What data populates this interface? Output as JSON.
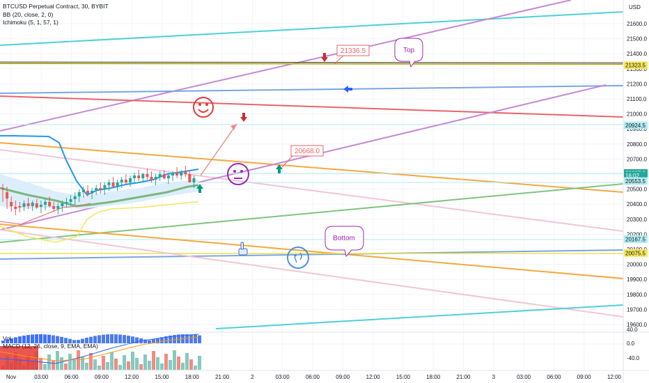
{
  "header": {
    "title": "BTCUSD Perpetual Contract, 30, BYBIT",
    "indicators": [
      "BB (20, close, 2, 0)",
      "Ichimoku (5, 1, 57, 1)"
    ]
  },
  "lower_pane": {
    "labels": [
      "Vol",
      "MACD (12, 26, close, 9, EMA, EMA)"
    ],
    "scale": [
      "40.0",
      "0.0",
      "-40.0"
    ]
  },
  "price_axis": {
    "currency": "USD",
    "ticks": [
      "21600.0",
      "21500.0",
      "21400.0",
      "21300.0",
      "21200.0",
      "21100.0",
      "21000.0",
      "20900.0",
      "20800.0",
      "20700.0",
      "20600.0",
      "20500.0",
      "20400.0",
      "20300.0",
      "20200.0",
      "20100.0",
      "20000.0",
      "19900.0",
      "19800.0",
      "19700.0",
      "19600.0"
    ],
    "tags": [
      {
        "text": "21323.5",
        "color": "#f5e65a",
        "price": 21323.5
      },
      {
        "text": "20924.5",
        "color": "#b2ebf2",
        "price": 20924.5
      },
      {
        "text": "20607.0",
        "color": "#26a69a",
        "price": 20607
      },
      {
        "text": "16:02",
        "color": "#26a69a",
        "price": 20590
      },
      {
        "text": "20553.5",
        "color": "#b2ebf2",
        "price": 20553.5
      },
      {
        "text": "20167.5",
        "color": "#b2ebf2",
        "price": 20167.5
      },
      {
        "text": "20075.5",
        "color": "#f5e65a",
        "price": 20075.5
      }
    ]
  },
  "time_axis": {
    "labels": [
      "Nov",
      "03:00",
      "06:00",
      "09:00",
      "12:00",
      "15:00",
      "18:00",
      "21:00",
      "2",
      "03:00",
      "06:00",
      "09:00",
      "12:00",
      "15:00",
      "18:00",
      "21:00",
      "3",
      "03:00",
      "06:00",
      "09:00",
      "12:00"
    ]
  },
  "annotations": {
    "price_callout_1": "21336.5",
    "price_callout_2": "20668.0",
    "top_bubble": "Top",
    "bottom_bubble": "Bottom"
  },
  "chart_data": {
    "type": "candlestick",
    "title": "BTCUSD Perpetual Contract, 30, BYBIT",
    "ylim": [
      19560,
      21700
    ],
    "x_range": [
      "Nov 1 00:00",
      "Nov 3 12:00"
    ],
    "candles_approx": [
      {
        "t": "Nov 1 09:00",
        "o": 20470,
        "h": 20520,
        "l": 20430,
        "c": 20490
      },
      {
        "t": "Nov 1 12:00",
        "o": 20500,
        "h": 20580,
        "l": 20480,
        "c": 20550
      },
      {
        "t": "Nov 1 15:00",
        "o": 20560,
        "h": 20660,
        "l": 20530,
        "c": 20620
      },
      {
        "t": "Nov 1 18:00",
        "o": 20560,
        "h": 20640,
        "l": 20530,
        "c": 20607
      }
    ],
    "last_price": 20607.0,
    "colors": {
      "up": "#26a69a",
      "down": "#ef5350"
    }
  }
}
